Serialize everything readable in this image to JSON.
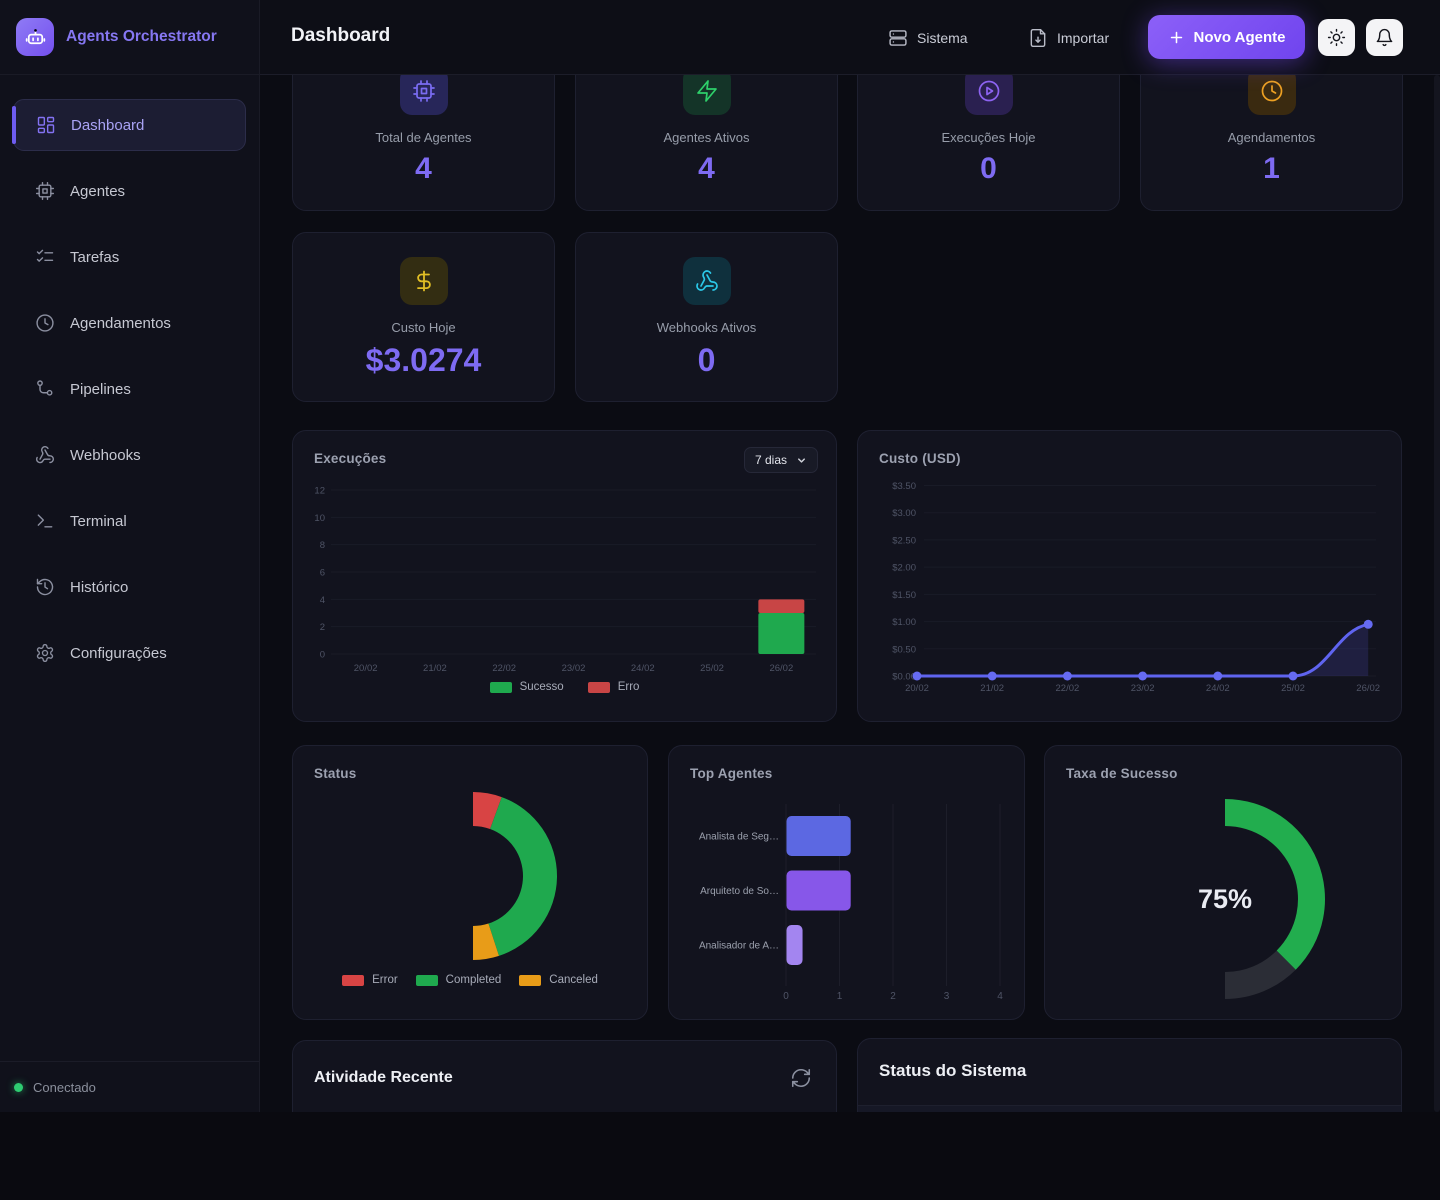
{
  "sidebar": {
    "brand": "Agents Orchestrator",
    "items": [
      {
        "label": "Dashboard",
        "icon": "layout-dashboard-icon",
        "active": true
      },
      {
        "label": "Agentes",
        "icon": "cpu-icon",
        "active": false
      },
      {
        "label": "Tarefas",
        "icon": "list-checks-icon",
        "active": false
      },
      {
        "label": "Agendamentos",
        "icon": "clock-icon",
        "active": false
      },
      {
        "label": "Pipelines",
        "icon": "route-icon",
        "active": false
      },
      {
        "label": "Webhooks",
        "icon": "webhook-icon",
        "active": false
      },
      {
        "label": "Terminal",
        "icon": "terminal-icon",
        "active": false
      },
      {
        "label": "Histórico",
        "icon": "history-icon",
        "active": false
      },
      {
        "label": "Configurações",
        "icon": "gear-icon",
        "active": false
      }
    ],
    "footer": {
      "status": "Conectado",
      "status_color": "#2ecc71"
    }
  },
  "header": {
    "title": "Dashboard",
    "actions": {
      "sistema": "Sistema",
      "importar": "Importar",
      "novo_agente": "Novo Agente"
    },
    "icons": [
      "server-icon",
      "file-download-icon",
      "plus-icon",
      "sun-icon",
      "bell-icon"
    ]
  },
  "stats": [
    {
      "label": "Total de Agentes",
      "value": "4",
      "icon": "cpu-icon",
      "icon_color": "#7a6cf2",
      "icon_bg": "#272659"
    },
    {
      "label": "Agentes Ativos",
      "value": "4",
      "icon": "zap-icon",
      "icon_color": "#2ed06a",
      "icon_bg": "#143428"
    },
    {
      "label": "Execuções Hoje",
      "value": "0",
      "icon": "play-circle-icon",
      "icon_color": "#8d63f2",
      "icon_bg": "#2a2050"
    },
    {
      "label": "Agendamentos",
      "value": "1",
      "icon": "clock-icon",
      "icon_color": "#eda022",
      "icon_bg": "#3a2a10"
    },
    {
      "label": "Custo Hoje",
      "value": "$3.0274",
      "icon": "dollar-icon",
      "icon_color": "#e2bf25",
      "icon_bg": "#332d12"
    },
    {
      "label": "Webhooks Ativos",
      "value": "0",
      "icon": "webhook-icon",
      "icon_color": "#2bc8e8",
      "icon_bg": "#0f303d"
    }
  ],
  "chart_data": [
    {
      "id": "execucoes",
      "type": "bar",
      "stacked": true,
      "title": "Execuções",
      "period_selected": "7 dias",
      "categories": [
        "20/02",
        "21/02",
        "22/02",
        "23/02",
        "24/02",
        "25/02",
        "26/02"
      ],
      "series": [
        {
          "name": "Sucesso",
          "color": "#1fa94e",
          "values": [
            0,
            0,
            0,
            0,
            0,
            0,
            3
          ]
        },
        {
          "name": "Erro",
          "color": "#c84545",
          "values": [
            0,
            0,
            0,
            0,
            0,
            0,
            1
          ]
        }
      ],
      "ylim": [
        0,
        12
      ],
      "yticks": [
        0,
        2,
        4,
        6,
        8,
        10,
        12
      ],
      "grid": true,
      "legend_position": "bottom"
    },
    {
      "id": "custo",
      "type": "line",
      "title": "Custo (USD)",
      "x": [
        "20/02",
        "21/02",
        "22/02",
        "23/02",
        "24/02",
        "25/02",
        "26/02"
      ],
      "values": [
        0,
        0,
        0,
        0,
        0,
        0,
        0.95
      ],
      "ylim": [
        0,
        3.5
      ],
      "ytick_step": 0.5,
      "ytick_prefix": "$",
      "line_color": "#5f64f0",
      "fill_color": "rgba(99,102,241,0.16)",
      "points": true,
      "grid": true
    },
    {
      "id": "status",
      "type": "donut",
      "title": "Status",
      "segments": [
        {
          "label": "Error",
          "color": "#d84444",
          "sweep_deg": 20
        },
        {
          "label": "Completed",
          "color": "#1fa94e",
          "sweep_deg": 142
        },
        {
          "label": "Canceled",
          "color": "#e89c18",
          "sweep_deg": 18
        }
      ],
      "arc_start": "12-oclock",
      "arc_direction": "clockwise",
      "arc_total_deg": 180,
      "legend_position": "bottom"
    },
    {
      "id": "top_agentes",
      "type": "hbar",
      "title": "Top Agentes",
      "categories": [
        "Analista de Seg…",
        "Arquiteto de So…",
        "Analisador de A…"
      ],
      "values": [
        1.2,
        1.2,
        0.3
      ],
      "colors": [
        "#5c68e2",
        "#8757e9",
        "#a385f0"
      ],
      "xlim": [
        0,
        4
      ],
      "xticks": [
        0,
        1,
        2,
        3,
        4
      ],
      "grid": true
    },
    {
      "id": "taxa_sucesso",
      "type": "gauge",
      "title": "Taxa de Sucesso",
      "value_pct": 75,
      "center_label": "75%",
      "filled_color": "#22ad4e",
      "rest_color": "#2b2d36",
      "arc_total_deg": 180
    }
  ],
  "activity": {
    "title": "Atividade Recente",
    "refresh_icon": "refresh-icon"
  },
  "system": {
    "title": "Status do Sistema"
  },
  "colors": {
    "accent": "#7e6bf2",
    "success": "#1fa94e",
    "error": "#c84545",
    "warning": "#e89c18",
    "bg": "#0b0c13",
    "card": "#12131e"
  }
}
